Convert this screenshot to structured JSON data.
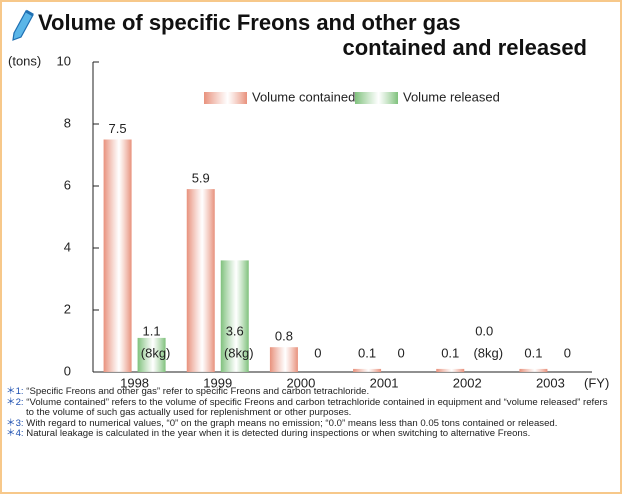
{
  "chart_data": {
    "type": "bar",
    "title": [
      "Volume of specific Freons and other gas",
      "contained and released"
    ],
    "y_label": "(tons)",
    "x_label": "(FY)",
    "categories": [
      "1998",
      "1999",
      "2000",
      "2001",
      "2002",
      "2003"
    ],
    "series": [
      {
        "name": "Volume contained",
        "color": "#e8917c",
        "values": [
          7.5,
          5.9,
          0.8,
          0.1,
          0.1,
          0.1
        ]
      },
      {
        "name": "Volume released",
        "color": "#7fc17c",
        "values": [
          1.1,
          3.6,
          0,
          0,
          0,
          0
        ],
        "value_labels": [
          "1.1",
          "3.6",
          "0",
          "0",
          "0.0",
          "0"
        ]
      }
    ],
    "annotation": "(8kg)",
    "ylim": [
      0,
      10
    ],
    "yticks": [
      0,
      2,
      4,
      6,
      8,
      10
    ],
    "legend": "top",
    "notes": [
      {
        "mark": "＊1:",
        "text": "“Specific Freons and other gas” refer to specific Freons and carbon tetrachloride."
      },
      {
        "mark": "＊2:",
        "text": "“Volume contained” refers to the volume of specific Freons and carbon tetrachloride contained in equipment and “volume released” refers to the volume of such gas actually used for replenishment or other purposes."
      },
      {
        "mark": "＊3:",
        "text": "With regard to numerical values, “0” on the graph means no emission; “0.0” means less than 0.05 tons contained or released."
      },
      {
        "mark": "＊4:",
        "text": "Natural leakage is calculated in the year when it is detected during inspections or when switching to alternative Freons."
      }
    ]
  }
}
